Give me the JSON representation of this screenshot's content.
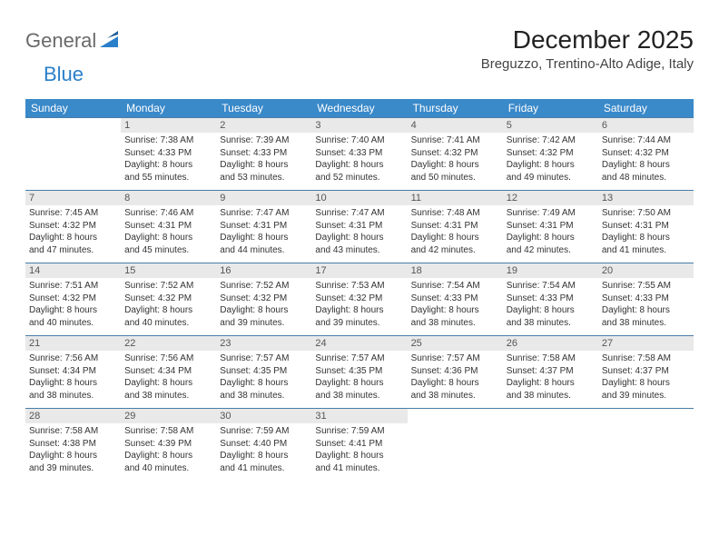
{
  "logo": {
    "general": "General",
    "blue": "Blue"
  },
  "title": "December 2025",
  "location": "Breguzzo, Trentino-Alto Adige, Italy",
  "colors": {
    "header_bg": "#3a89c9",
    "header_text": "#ffffff",
    "daynum_bg": "#e9e9e9",
    "cell_border": "#4a7da8",
    "body_text": "#333333",
    "logo_gray": "#6a6a6a",
    "logo_blue": "#2a7fc9"
  },
  "typography": {
    "title_fontsize": 28,
    "location_fontsize": 15,
    "header_fontsize": 12,
    "daynum_fontsize": 11,
    "cell_fontsize": 10
  },
  "weekdays": [
    "Sunday",
    "Monday",
    "Tuesday",
    "Wednesday",
    "Thursday",
    "Friday",
    "Saturday"
  ],
  "first_weekday_offset": 1,
  "days": [
    {
      "n": "1",
      "sunrise": "Sunrise: 7:38 AM",
      "sunset": "Sunset: 4:33 PM",
      "day1": "Daylight: 8 hours",
      "day2": "and 55 minutes."
    },
    {
      "n": "2",
      "sunrise": "Sunrise: 7:39 AM",
      "sunset": "Sunset: 4:33 PM",
      "day1": "Daylight: 8 hours",
      "day2": "and 53 minutes."
    },
    {
      "n": "3",
      "sunrise": "Sunrise: 7:40 AM",
      "sunset": "Sunset: 4:33 PM",
      "day1": "Daylight: 8 hours",
      "day2": "and 52 minutes."
    },
    {
      "n": "4",
      "sunrise": "Sunrise: 7:41 AM",
      "sunset": "Sunset: 4:32 PM",
      "day1": "Daylight: 8 hours",
      "day2": "and 50 minutes."
    },
    {
      "n": "5",
      "sunrise": "Sunrise: 7:42 AM",
      "sunset": "Sunset: 4:32 PM",
      "day1": "Daylight: 8 hours",
      "day2": "and 49 minutes."
    },
    {
      "n": "6",
      "sunrise": "Sunrise: 7:44 AM",
      "sunset": "Sunset: 4:32 PM",
      "day1": "Daylight: 8 hours",
      "day2": "and 48 minutes."
    },
    {
      "n": "7",
      "sunrise": "Sunrise: 7:45 AM",
      "sunset": "Sunset: 4:32 PM",
      "day1": "Daylight: 8 hours",
      "day2": "and 47 minutes."
    },
    {
      "n": "8",
      "sunrise": "Sunrise: 7:46 AM",
      "sunset": "Sunset: 4:31 PM",
      "day1": "Daylight: 8 hours",
      "day2": "and 45 minutes."
    },
    {
      "n": "9",
      "sunrise": "Sunrise: 7:47 AM",
      "sunset": "Sunset: 4:31 PM",
      "day1": "Daylight: 8 hours",
      "day2": "and 44 minutes."
    },
    {
      "n": "10",
      "sunrise": "Sunrise: 7:47 AM",
      "sunset": "Sunset: 4:31 PM",
      "day1": "Daylight: 8 hours",
      "day2": "and 43 minutes."
    },
    {
      "n": "11",
      "sunrise": "Sunrise: 7:48 AM",
      "sunset": "Sunset: 4:31 PM",
      "day1": "Daylight: 8 hours",
      "day2": "and 42 minutes."
    },
    {
      "n": "12",
      "sunrise": "Sunrise: 7:49 AM",
      "sunset": "Sunset: 4:31 PM",
      "day1": "Daylight: 8 hours",
      "day2": "and 42 minutes."
    },
    {
      "n": "13",
      "sunrise": "Sunrise: 7:50 AM",
      "sunset": "Sunset: 4:31 PM",
      "day1": "Daylight: 8 hours",
      "day2": "and 41 minutes."
    },
    {
      "n": "14",
      "sunrise": "Sunrise: 7:51 AM",
      "sunset": "Sunset: 4:32 PM",
      "day1": "Daylight: 8 hours",
      "day2": "and 40 minutes."
    },
    {
      "n": "15",
      "sunrise": "Sunrise: 7:52 AM",
      "sunset": "Sunset: 4:32 PM",
      "day1": "Daylight: 8 hours",
      "day2": "and 40 minutes."
    },
    {
      "n": "16",
      "sunrise": "Sunrise: 7:52 AM",
      "sunset": "Sunset: 4:32 PM",
      "day1": "Daylight: 8 hours",
      "day2": "and 39 minutes."
    },
    {
      "n": "17",
      "sunrise": "Sunrise: 7:53 AM",
      "sunset": "Sunset: 4:32 PM",
      "day1": "Daylight: 8 hours",
      "day2": "and 39 minutes."
    },
    {
      "n": "18",
      "sunrise": "Sunrise: 7:54 AM",
      "sunset": "Sunset: 4:33 PM",
      "day1": "Daylight: 8 hours",
      "day2": "and 38 minutes."
    },
    {
      "n": "19",
      "sunrise": "Sunrise: 7:54 AM",
      "sunset": "Sunset: 4:33 PM",
      "day1": "Daylight: 8 hours",
      "day2": "and 38 minutes."
    },
    {
      "n": "20",
      "sunrise": "Sunrise: 7:55 AM",
      "sunset": "Sunset: 4:33 PM",
      "day1": "Daylight: 8 hours",
      "day2": "and 38 minutes."
    },
    {
      "n": "21",
      "sunrise": "Sunrise: 7:56 AM",
      "sunset": "Sunset: 4:34 PM",
      "day1": "Daylight: 8 hours",
      "day2": "and 38 minutes."
    },
    {
      "n": "22",
      "sunrise": "Sunrise: 7:56 AM",
      "sunset": "Sunset: 4:34 PM",
      "day1": "Daylight: 8 hours",
      "day2": "and 38 minutes."
    },
    {
      "n": "23",
      "sunrise": "Sunrise: 7:57 AM",
      "sunset": "Sunset: 4:35 PM",
      "day1": "Daylight: 8 hours",
      "day2": "and 38 minutes."
    },
    {
      "n": "24",
      "sunrise": "Sunrise: 7:57 AM",
      "sunset": "Sunset: 4:35 PM",
      "day1": "Daylight: 8 hours",
      "day2": "and 38 minutes."
    },
    {
      "n": "25",
      "sunrise": "Sunrise: 7:57 AM",
      "sunset": "Sunset: 4:36 PM",
      "day1": "Daylight: 8 hours",
      "day2": "and 38 minutes."
    },
    {
      "n": "26",
      "sunrise": "Sunrise: 7:58 AM",
      "sunset": "Sunset: 4:37 PM",
      "day1": "Daylight: 8 hours",
      "day2": "and 38 minutes."
    },
    {
      "n": "27",
      "sunrise": "Sunrise: 7:58 AM",
      "sunset": "Sunset: 4:37 PM",
      "day1": "Daylight: 8 hours",
      "day2": "and 39 minutes."
    },
    {
      "n": "28",
      "sunrise": "Sunrise: 7:58 AM",
      "sunset": "Sunset: 4:38 PM",
      "day1": "Daylight: 8 hours",
      "day2": "and 39 minutes."
    },
    {
      "n": "29",
      "sunrise": "Sunrise: 7:58 AM",
      "sunset": "Sunset: 4:39 PM",
      "day1": "Daylight: 8 hours",
      "day2": "and 40 minutes."
    },
    {
      "n": "30",
      "sunrise": "Sunrise: 7:59 AM",
      "sunset": "Sunset: 4:40 PM",
      "day1": "Daylight: 8 hours",
      "day2": "and 41 minutes."
    },
    {
      "n": "31",
      "sunrise": "Sunrise: 7:59 AM",
      "sunset": "Sunset: 4:41 PM",
      "day1": "Daylight: 8 hours",
      "day2": "and 41 minutes."
    }
  ]
}
